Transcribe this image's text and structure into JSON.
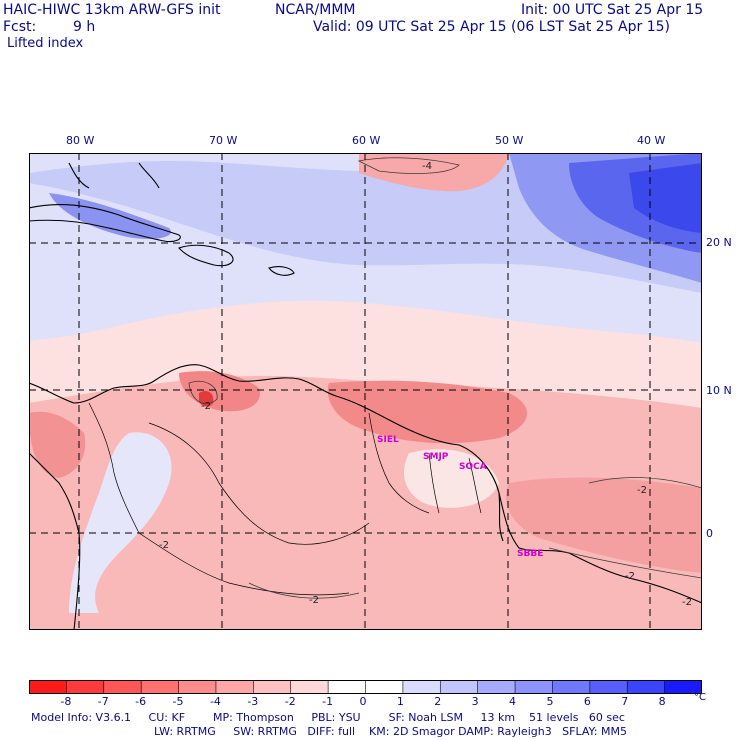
{
  "header": {
    "title_left": "HAIC-HIWC 13km ARW-GFS init",
    "title_center": "NCAR/MMM",
    "init": "Init: 00 UTC Sat 25 Apr 15",
    "fcst_label": "Fcst:",
    "fcst_value": "9 h",
    "valid": "Valid: 09 UTC Sat 25 Apr 15 (06 LST Sat 25 Apr 15)",
    "field": "Lifted index"
  },
  "map": {
    "lon_labels": [
      "80 W",
      "70 W",
      "60 W",
      "50 W",
      "40 W"
    ],
    "lat_labels": [
      "20 N",
      "10 N",
      "0"
    ],
    "stations": [
      "SIEL",
      "SMJP",
      "SOCA",
      "SBBE"
    ],
    "contour_labels": [
      "-4",
      "-2",
      "-2",
      "-2",
      "-2",
      "-2",
      "-2"
    ],
    "station_color": "#d000d0"
  },
  "colorbar": {
    "ticks": [
      "-8",
      "-7",
      "-6",
      "-5",
      "-4",
      "-3",
      "-2",
      "-1",
      "0",
      "1",
      "2",
      "3",
      "4",
      "5",
      "6",
      "7",
      "8"
    ],
    "unit": "°C",
    "colors": [
      "#ff1a1a",
      "#ff3a3a",
      "#ff5656",
      "#ff7070",
      "#ff8c8c",
      "#ffa6a6",
      "#ffc0c0",
      "#ffd9d9",
      "#ffffff",
      "#ffffff",
      "#d9dcff",
      "#c0c4ff",
      "#a6abff",
      "#8c92ff",
      "#7078ff",
      "#565eff",
      "#3a44ff",
      "#1a1aff"
    ]
  },
  "model_info": {
    "line1": "Model Info: V3.6.1     CU: KF        MP: Thompson     PBL: YSU        SF: Noah LSM     13 km    51 levels   60 sec",
    "line2": "LW: RRTMG     SW: RRTMG   DIFF: full    KM: 2D Smagor DAMP: Rayleigh3   SFLAY: MM5"
  }
}
